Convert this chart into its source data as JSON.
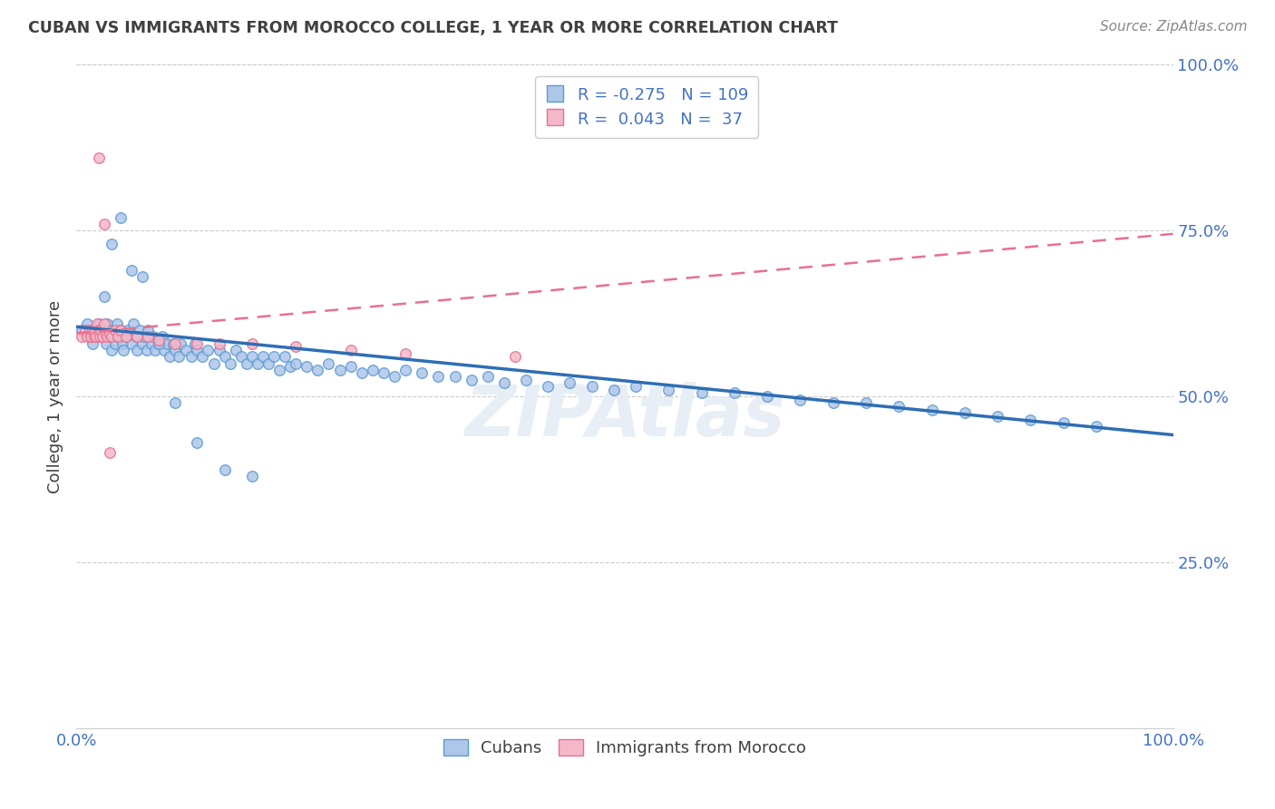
{
  "title": "CUBAN VS IMMIGRANTS FROM MOROCCO COLLEGE, 1 YEAR OR MORE CORRELATION CHART",
  "source": "Source: ZipAtlas.com",
  "ylabel": "College, 1 year or more",
  "xlim": [
    0,
    1
  ],
  "ylim": [
    0,
    1
  ],
  "ytick_labels": [
    "25.0%",
    "50.0%",
    "75.0%",
    "100.0%"
  ],
  "ytick_positions": [
    0.25,
    0.5,
    0.75,
    1.0
  ],
  "legend_labels": [
    "Cubans",
    "Immigrants from Morocco"
  ],
  "blue_scatter_color": "#aec6e8",
  "blue_edge_color": "#5b9bd5",
  "pink_scatter_color": "#f4b8c8",
  "pink_edge_color": "#e87090",
  "blue_line_color": "#2e6eb5",
  "pink_line_color": "#e87090",
  "title_color": "#404040",
  "axis_label_color": "#4472c4",
  "source_color": "#888888",
  "background_color": "#ffffff",
  "grid_color": "#cccccc",
  "watermark": "ZIPAtlas",
  "watermark_color": "#e8eef5",
  "blue_trend_x0": 0.0,
  "blue_trend_y0": 0.605,
  "blue_trend_x1": 1.0,
  "blue_trend_y1": 0.442,
  "pink_trend_x0": 0.0,
  "pink_trend_y0": 0.595,
  "pink_trend_x1": 1.0,
  "pink_trend_y1": 0.745,
  "cubans_x": [
    0.005,
    0.01,
    0.012,
    0.015,
    0.018,
    0.02,
    0.022,
    0.025,
    0.027,
    0.028,
    0.03,
    0.032,
    0.033,
    0.035,
    0.037,
    0.038,
    0.04,
    0.042,
    0.043,
    0.045,
    0.047,
    0.05,
    0.052,
    0.054,
    0.055,
    0.058,
    0.06,
    0.062,
    0.064,
    0.065,
    0.068,
    0.07,
    0.072,
    0.075,
    0.078,
    0.08,
    0.082,
    0.085,
    0.088,
    0.09,
    0.093,
    0.095,
    0.1,
    0.105,
    0.108,
    0.11,
    0.115,
    0.12,
    0.125,
    0.13,
    0.135,
    0.14,
    0.145,
    0.15,
    0.155,
    0.16,
    0.165,
    0.17,
    0.175,
    0.18,
    0.185,
    0.19,
    0.195,
    0.2,
    0.21,
    0.22,
    0.23,
    0.24,
    0.25,
    0.26,
    0.27,
    0.28,
    0.29,
    0.3,
    0.315,
    0.33,
    0.345,
    0.36,
    0.375,
    0.39,
    0.41,
    0.43,
    0.45,
    0.47,
    0.49,
    0.51,
    0.54,
    0.57,
    0.6,
    0.63,
    0.66,
    0.69,
    0.72,
    0.75,
    0.78,
    0.81,
    0.84,
    0.87,
    0.9,
    0.93,
    0.025,
    0.032,
    0.04,
    0.05,
    0.06,
    0.075,
    0.09,
    0.11,
    0.135,
    0.16
  ],
  "cubans_y": [
    0.6,
    0.61,
    0.59,
    0.58,
    0.6,
    0.61,
    0.59,
    0.6,
    0.58,
    0.61,
    0.59,
    0.57,
    0.6,
    0.58,
    0.61,
    0.59,
    0.6,
    0.58,
    0.57,
    0.59,
    0.6,
    0.58,
    0.61,
    0.59,
    0.57,
    0.6,
    0.58,
    0.59,
    0.57,
    0.6,
    0.58,
    0.59,
    0.57,
    0.58,
    0.59,
    0.57,
    0.58,
    0.56,
    0.58,
    0.57,
    0.56,
    0.58,
    0.57,
    0.56,
    0.58,
    0.57,
    0.56,
    0.57,
    0.55,
    0.57,
    0.56,
    0.55,
    0.57,
    0.56,
    0.55,
    0.56,
    0.55,
    0.56,
    0.55,
    0.56,
    0.54,
    0.56,
    0.545,
    0.55,
    0.545,
    0.54,
    0.55,
    0.54,
    0.545,
    0.535,
    0.54,
    0.535,
    0.53,
    0.54,
    0.535,
    0.53,
    0.53,
    0.525,
    0.53,
    0.52,
    0.525,
    0.515,
    0.52,
    0.515,
    0.51,
    0.515,
    0.51,
    0.505,
    0.505,
    0.5,
    0.495,
    0.49,
    0.49,
    0.485,
    0.48,
    0.475,
    0.47,
    0.465,
    0.46,
    0.455,
    0.65,
    0.73,
    0.77,
    0.69,
    0.68,
    0.58,
    0.49,
    0.43,
    0.39,
    0.38
  ],
  "morocco_x": [
    0.005,
    0.008,
    0.01,
    0.012,
    0.013,
    0.015,
    0.016,
    0.017,
    0.018,
    0.019,
    0.02,
    0.021,
    0.022,
    0.024,
    0.025,
    0.027,
    0.028,
    0.03,
    0.032,
    0.035,
    0.038,
    0.04,
    0.045,
    0.055,
    0.065,
    0.075,
    0.09,
    0.11,
    0.13,
    0.16,
    0.2,
    0.25,
    0.3,
    0.4,
    0.02,
    0.025,
    0.03
  ],
  "morocco_y": [
    0.59,
    0.6,
    0.59,
    0.6,
    0.59,
    0.6,
    0.59,
    0.6,
    0.59,
    0.61,
    0.6,
    0.59,
    0.6,
    0.59,
    0.61,
    0.595,
    0.59,
    0.595,
    0.59,
    0.6,
    0.59,
    0.6,
    0.59,
    0.59,
    0.59,
    0.585,
    0.58,
    0.58,
    0.58,
    0.58,
    0.575,
    0.57,
    0.565,
    0.56,
    0.86,
    0.76,
    0.415
  ]
}
